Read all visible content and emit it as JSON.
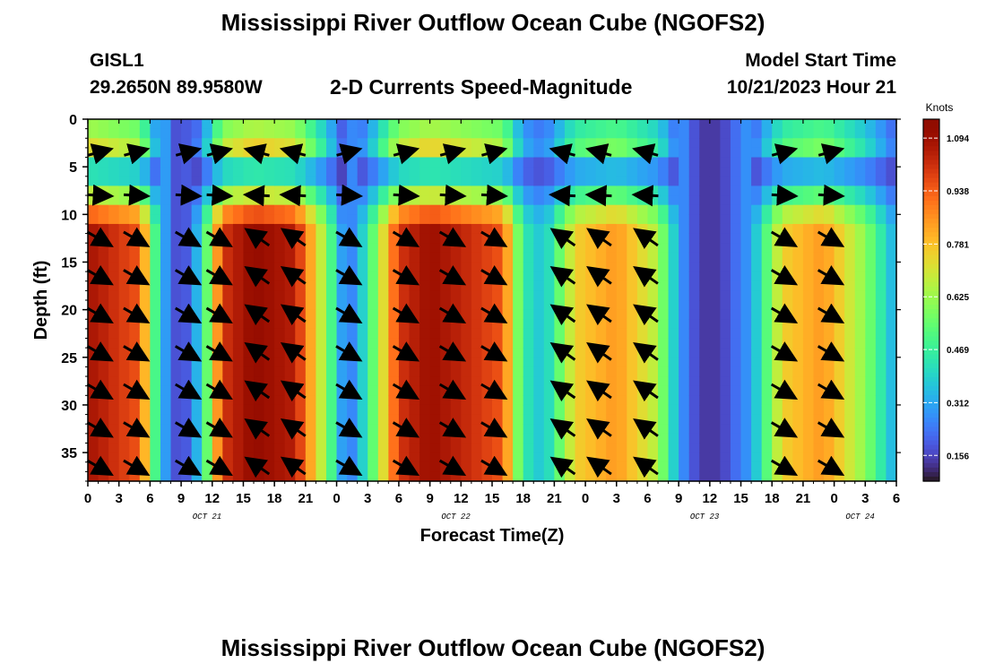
{
  "page": {
    "title": "Mississippi River Outflow Ocean Cube (NGOFS2)",
    "station_id": "GISL1",
    "coordinates": "29.2650N  89.9580W",
    "subtitle": "2-D Currents Speed-Magnitude",
    "model_start_label": "Model Start Time",
    "model_start_value": "10/21/2023 Hour 21",
    "bottom_title": "Mississippi River Outflow Ocean Cube (NGOFS2)"
  },
  "chart_data": {
    "type": "heatmap",
    "xlabel": "Forecast Time(Z)",
    "ylabel": "Depth (ft)",
    "x_unit": "hours from 0Z Oct 21",
    "xlim": [
      0,
      78
    ],
    "ylim": [
      38,
      0
    ],
    "x_ticks": [
      0,
      3,
      6,
      9,
      12,
      15,
      18,
      21,
      24,
      27,
      30,
      33,
      36,
      39,
      42,
      45,
      48,
      51,
      54,
      57,
      60,
      63,
      66,
      69,
      72,
      75,
      78
    ],
    "x_tick_labels": [
      "0",
      "3",
      "6",
      "9",
      "12",
      "15",
      "18",
      "21",
      "0",
      "3",
      "6",
      "9",
      "12",
      "15",
      "18",
      "21",
      "0",
      "3",
      "6",
      "9",
      "12",
      "15",
      "18",
      "21",
      "0",
      "3",
      "6"
    ],
    "y_ticks": [
      0,
      5,
      10,
      15,
      20,
      25,
      30,
      35
    ],
    "date_labels": [
      {
        "hour": 11.5,
        "text": "OCT 21"
      },
      {
        "hour": 35.5,
        "text": "OCT 22"
      },
      {
        "hour": 59.5,
        "text": "OCT 23"
      },
      {
        "hour": 74.5,
        "text": "OCT 24"
      }
    ],
    "colorbar": {
      "label": "Knots",
      "min": 0.08,
      "max": 1.15,
      "ticks": [
        0.156,
        0.312,
        0.469,
        0.625,
        0.781,
        0.938,
        1.094
      ]
    },
    "speed_levels": [
      {
        "hour": 0,
        "speed": 1.08
      },
      {
        "hour": 5,
        "speed": 0.95
      },
      {
        "hour": 7,
        "speed": 0.35
      },
      {
        "hour": 9,
        "speed": 0.12
      },
      {
        "hour": 11,
        "speed": 0.4
      },
      {
        "hour": 13,
        "speed": 1.0
      },
      {
        "hour": 16,
        "speed": 1.12
      },
      {
        "hour": 20,
        "speed": 1.05
      },
      {
        "hour": 23,
        "speed": 0.6
      },
      {
        "hour": 25,
        "speed": 0.2
      },
      {
        "hour": 27,
        "speed": 0.45
      },
      {
        "hour": 30,
        "speed": 1.0
      },
      {
        "hour": 33,
        "speed": 1.1
      },
      {
        "hour": 40,
        "speed": 0.95
      },
      {
        "hour": 42,
        "speed": 0.45
      },
      {
        "hour": 44,
        "speed": 0.35
      },
      {
        "hour": 47,
        "speed": 0.75
      },
      {
        "hour": 51,
        "speed": 0.85
      },
      {
        "hour": 55,
        "speed": 0.65
      },
      {
        "hour": 57,
        "speed": 0.3
      },
      {
        "hour": 59,
        "speed": 0.14
      },
      {
        "hour": 61,
        "speed": 0.14
      },
      {
        "hour": 64,
        "speed": 0.3
      },
      {
        "hour": 67,
        "speed": 0.75
      },
      {
        "hour": 71,
        "speed": 0.85
      },
      {
        "hour": 75,
        "speed": 0.6
      },
      {
        "hour": 78,
        "speed": 0.3
      }
    ],
    "vector_columns": [
      {
        "hour": 1,
        "dir": "se"
      },
      {
        "hour": 4.5,
        "dir": "se"
      },
      {
        "hour": 9.5,
        "dir": "se"
      },
      {
        "hour": 12.5,
        "dir": "se"
      },
      {
        "hour": 16.5,
        "dir": "nw"
      },
      {
        "hour": 20,
        "dir": "nw"
      },
      {
        "hour": 25,
        "dir": "se"
      },
      {
        "hour": 30.5,
        "dir": "se"
      },
      {
        "hour": 35,
        "dir": "se"
      },
      {
        "hour": 39,
        "dir": "se"
      },
      {
        "hour": 46,
        "dir": "nw"
      },
      {
        "hour": 49.5,
        "dir": "nw"
      },
      {
        "hour": 54,
        "dir": "nw"
      },
      {
        "hour": 67,
        "dir": "se"
      },
      {
        "hour": 71.5,
        "dir": "se"
      }
    ],
    "vector_depths": [
      3.5,
      8,
      12.5,
      16.5,
      20.5,
      24.5,
      28.5,
      32.5,
      36.5
    ]
  }
}
